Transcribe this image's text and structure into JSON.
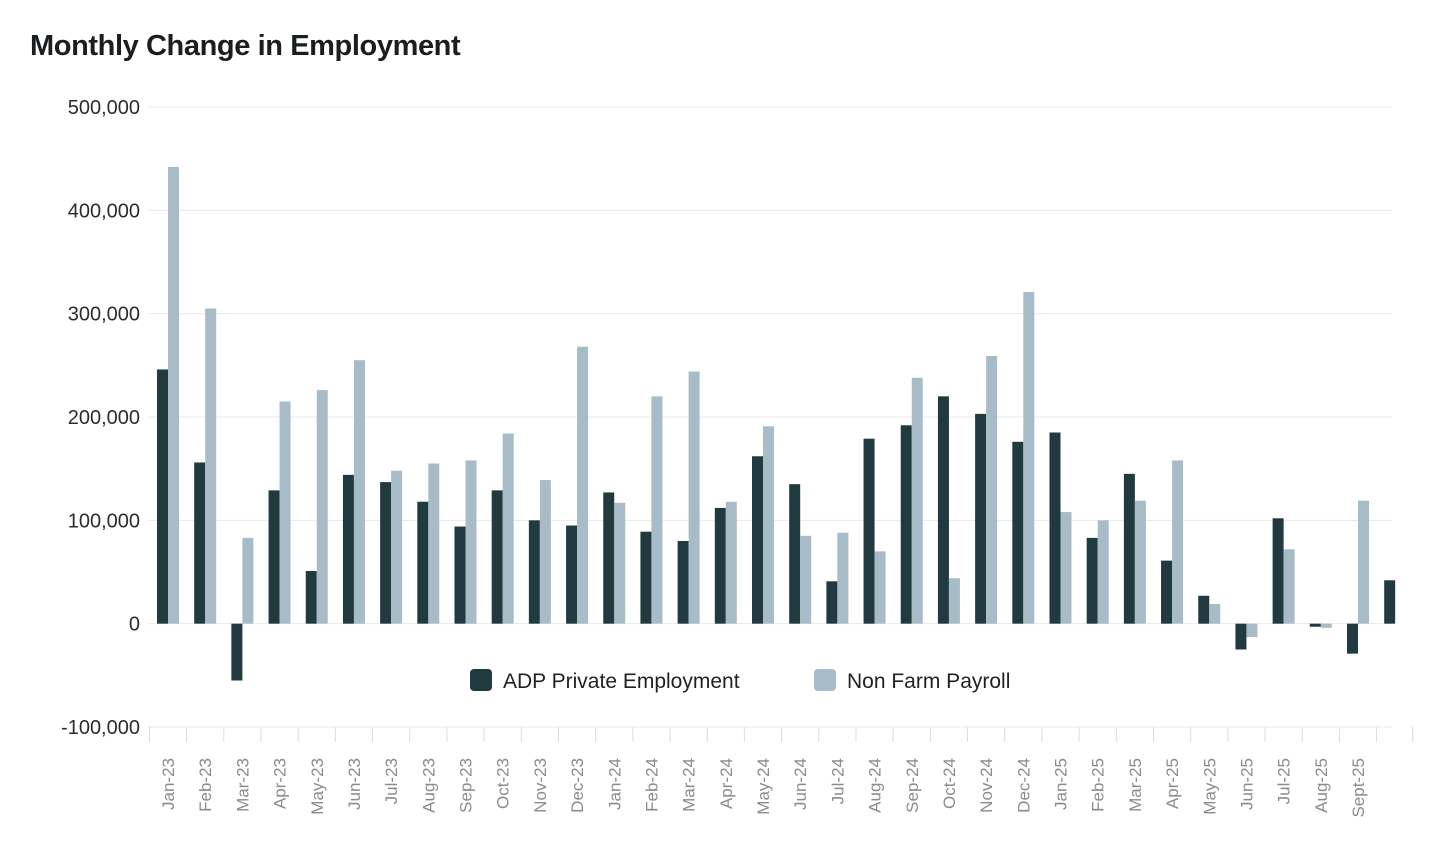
{
  "chart_data": {
    "type": "bar",
    "title": "Monthly Change in Employment",
    "xlabel": "",
    "ylabel": "",
    "ylim": [
      -100000,
      500000
    ],
    "yticks": [
      500000,
      400000,
      300000,
      200000,
      100000,
      0,
      -100000
    ],
    "ytick_labels": [
      "500,000",
      "400,000",
      "300,000",
      "200,000",
      "100,000",
      "0",
      "-100,000"
    ],
    "grid": true,
    "legend_position": "bottom-center-inside",
    "categories": [
      "Jan-23",
      "Feb-23",
      "Mar-23",
      "Apr-23",
      "May-23",
      "Jun-23",
      "Jul-23",
      "Aug-23",
      "Sep-23",
      "Oct-23",
      "Nov-23",
      "Dec-23",
      "Jan-24",
      "Feb-24",
      "Mar-24",
      "Apr-24",
      "May-24",
      "Jun-24",
      "Jul-24",
      "Aug-24",
      "Sep-24",
      "Oct-24",
      "Nov-24",
      "Dec-24",
      "Jan-25",
      "Feb-25",
      "Mar-25",
      "Apr-25",
      "May-25",
      "Jun-25",
      "Jul-25",
      "Aug-25",
      "Sept-25",
      ""
    ],
    "series": [
      {
        "name": "ADP Private Employment",
        "color": "#213a40",
        "values": [
          246000,
          156000,
          -55000,
          129000,
          51000,
          144000,
          137000,
          118000,
          94000,
          129000,
          100000,
          95000,
          127000,
          89000,
          80000,
          112000,
          162000,
          135000,
          41000,
          179000,
          192000,
          220000,
          203000,
          176000,
          185000,
          83000,
          145000,
          61000,
          27000,
          -25000,
          102000,
          -3000,
          -29000,
          42000
        ]
      },
      {
        "name": "Non Farm Payroll",
        "color": "#a7bcc6",
        "values": [
          442000,
          305000,
          83000,
          215000,
          226000,
          255000,
          148000,
          155000,
          158000,
          184000,
          139000,
          268000,
          117000,
          220000,
          244000,
          118000,
          191000,
          85000,
          88000,
          70000,
          238000,
          44000,
          259000,
          321000,
          108000,
          100000,
          119000,
          158000,
          19000,
          -13000,
          72000,
          -4000,
          119000,
          null
        ]
      }
    ]
  }
}
